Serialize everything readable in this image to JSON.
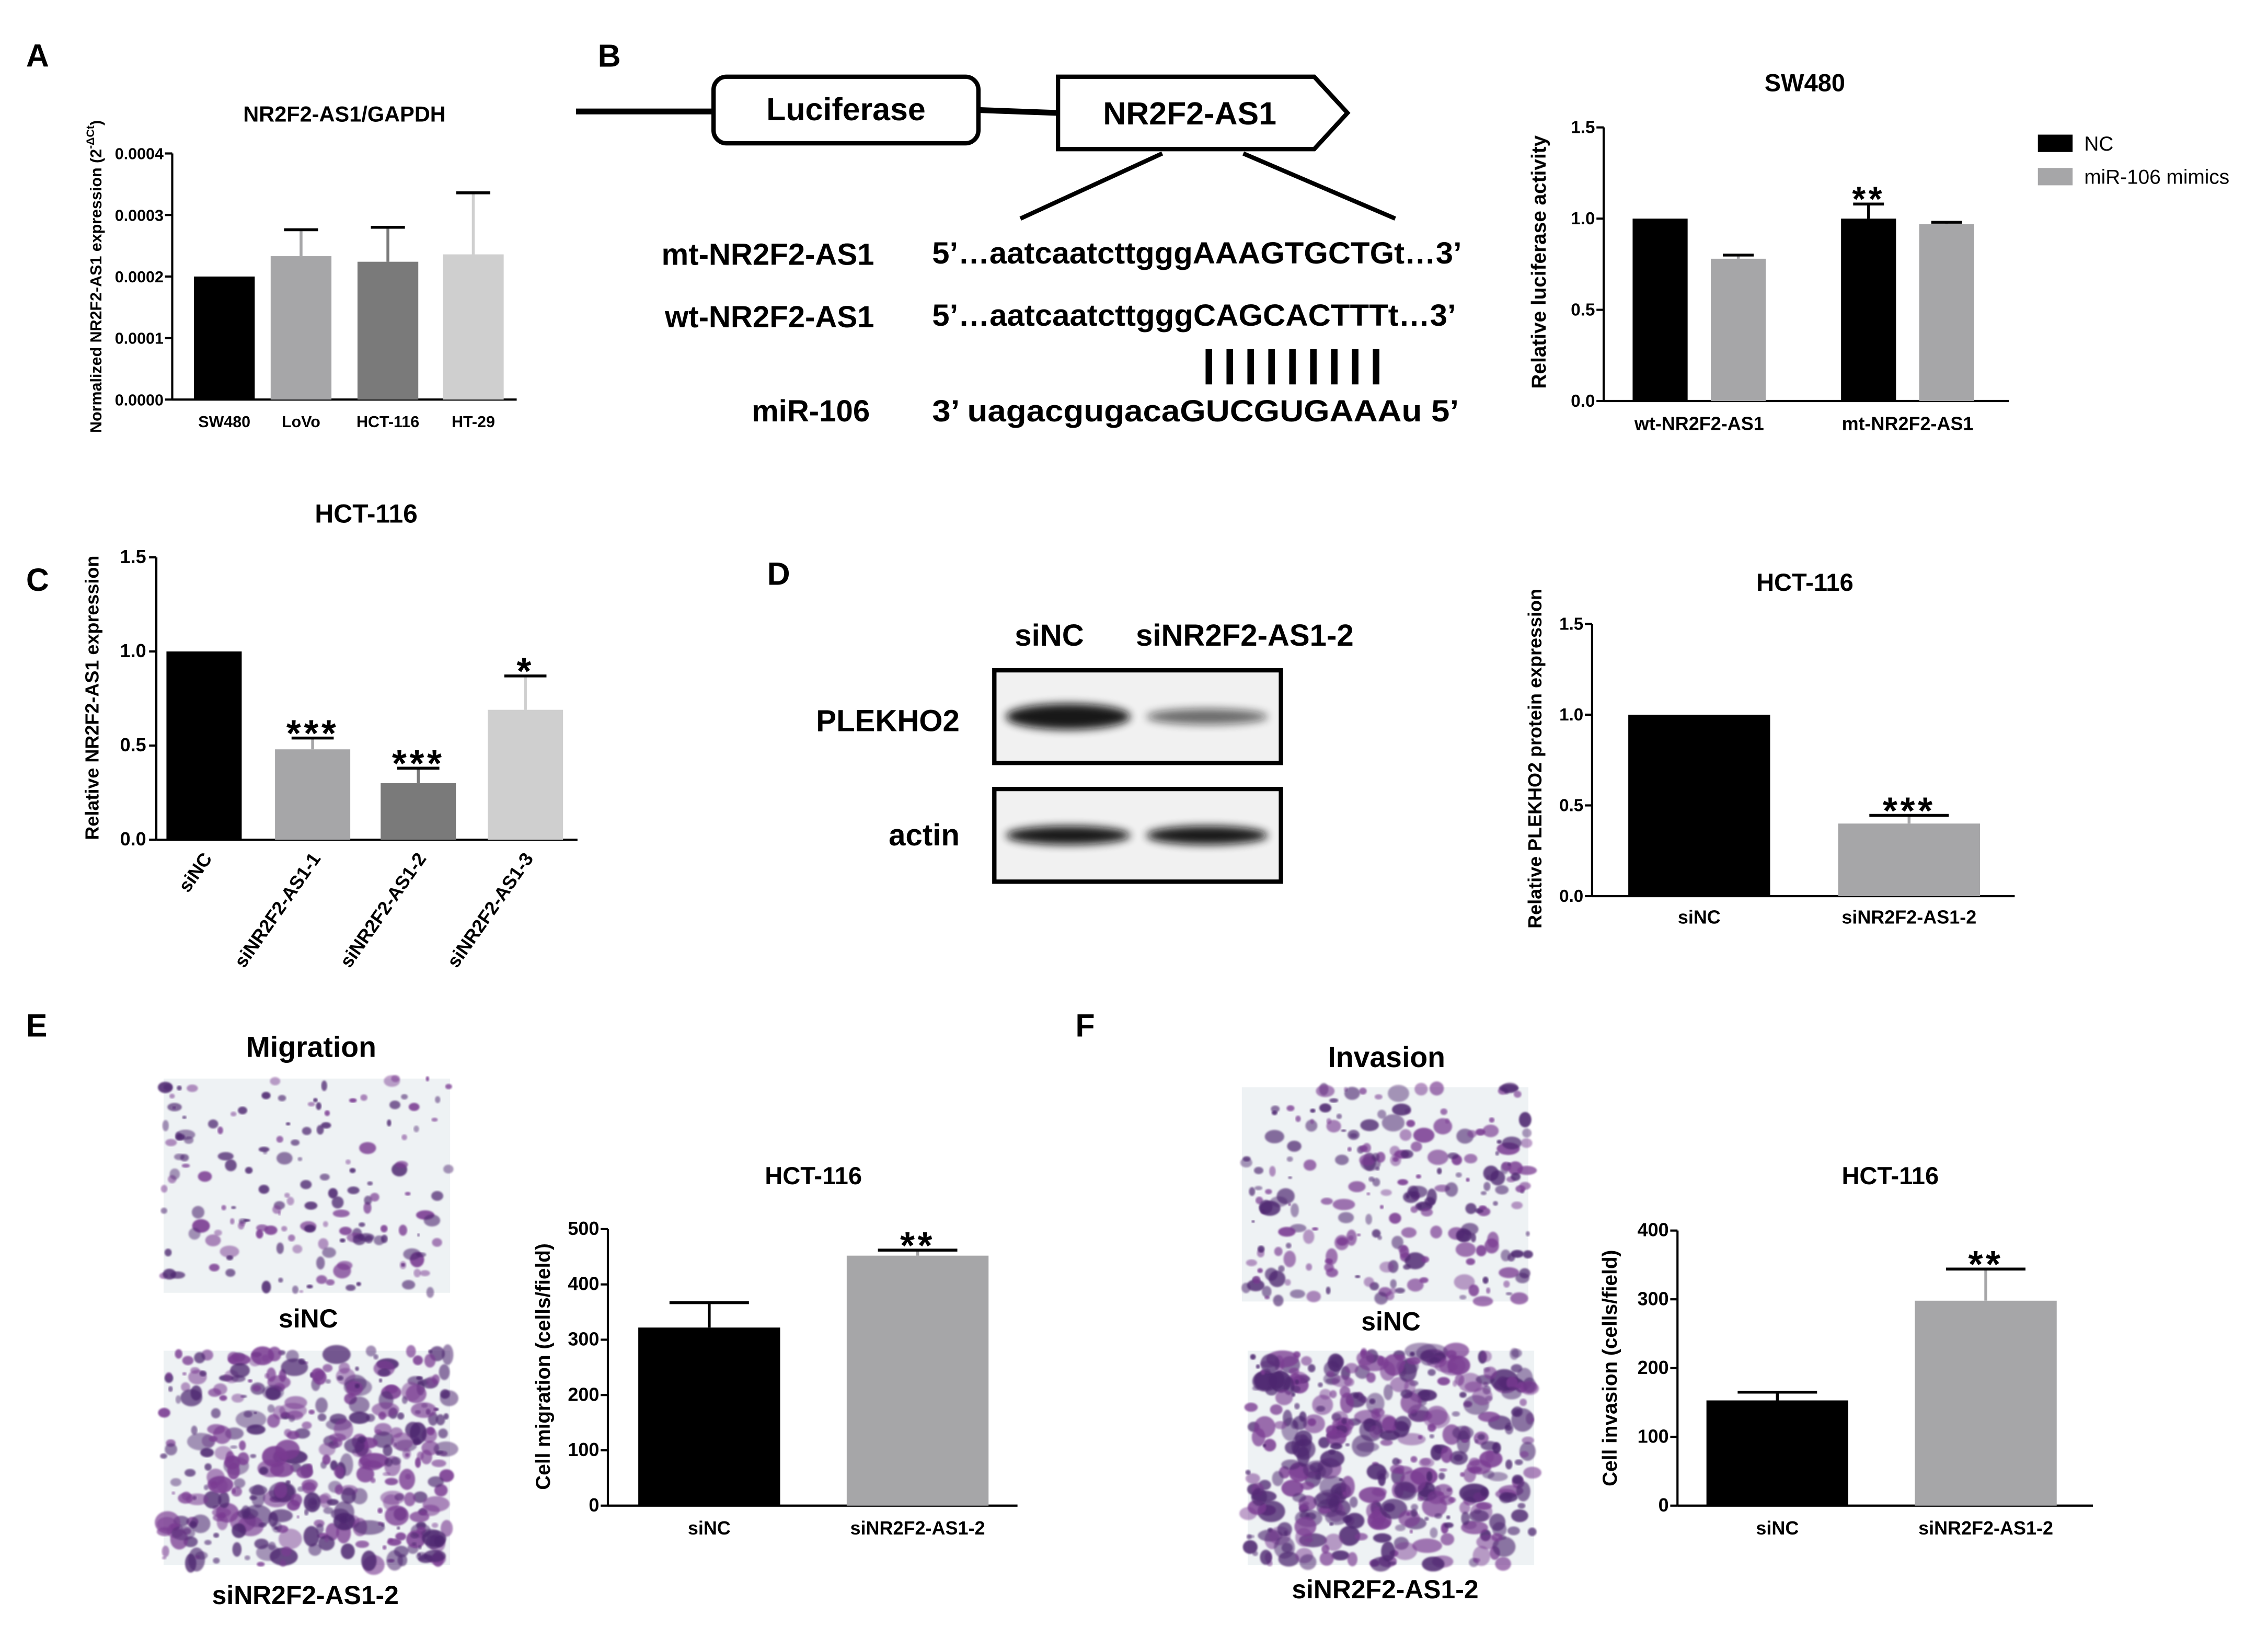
{
  "panel_labels": {
    "a": "A",
    "b": "B",
    "c": "C",
    "d": "D",
    "e": "E",
    "f": "F"
  },
  "colors": {
    "black": "#000000",
    "gray": "#a6a6a8",
    "dark_gray": "#7a7a7a",
    "light_gray": "#cfcfcf",
    "stain_purple": "#7a3a92",
    "stain_background": "#eef2f4"
  },
  "construct": {
    "luciferase_label": "Luciferase",
    "gene_label": "NR2F2-AS1"
  },
  "sequences": [
    {
      "name": "mt-NR2F2-AS1",
      "seq": "5’…aatcaatcttgggAAAGTGCTGt…3’"
    },
    {
      "name": "wt-NR2F2-AS1",
      "seq": "5’…aatcaatcttgggCAGCACTTTt…3’"
    },
    {
      "name": "miR-106",
      "seq": "3’  uagacgugacaGUCGUGAAAu  5’"
    }
  ],
  "pairing_marks": "|||||||||",
  "western": {
    "lane_labels": [
      "siNC",
      "siNR2F2-AS1-2"
    ],
    "rows": [
      {
        "label": "PLEKHO2",
        "relative_intensity": [
          1.0,
          0.4
        ]
      },
      {
        "label": "actin",
        "relative_intensity": [
          1.0,
          1.0
        ]
      }
    ]
  },
  "images": {
    "migration_title": "Migration",
    "invasion_title": "Invasion",
    "captions": [
      "siNC",
      "siNR2F2-AS1-2"
    ]
  },
  "chart_data": [
    {
      "id": "A",
      "type": "bar",
      "title": "NR2F2-AS1/GAPDH",
      "ylabel": "Normalized NR2F2-AS1 expression (2",
      "ylabel_sup": "-ΔCt",
      "ylabel_tail": ")",
      "categories": [
        "SW480",
        "LoVo",
        "HCT-116",
        "HT-29"
      ],
      "values": [
        0.0002,
        0.000233,
        0.000224,
        0.000236
      ],
      "errors": [
        0.0,
        4.3e-05,
        5.6e-05,
        0.0001
      ],
      "colors": [
        "#000000",
        "#a6a6a8",
        "#7a7a7a",
        "#cfcfcf"
      ],
      "ylim": [
        0,
        0.0004
      ],
      "ytick_labels": [
        "0.0000",
        "0.0001",
        "0.0002",
        "0.0003",
        "0.0004"
      ],
      "significance": [
        "",
        "",
        "",
        ""
      ]
    },
    {
      "id": "B",
      "type": "bar",
      "title": "SW480",
      "ylabel": "Relative luciferase activity",
      "categories": [
        "wt-NR2F2-AS1",
        "mt-NR2F2-AS1"
      ],
      "series": [
        {
          "name": "NC",
          "color": "#000000",
          "values": [
            1.0,
            1.0
          ],
          "errors": [
            0.0,
            0.08
          ]
        },
        {
          "name": "miR-106 mimics",
          "color": "#a6a6a8",
          "values": [
            0.78,
            0.97
          ],
          "errors": [
            0.02,
            0.01
          ]
        }
      ],
      "ylim": [
        0,
        1.5
      ],
      "ytick_labels": [
        "0.0",
        "0.5",
        "1.0",
        "1.5"
      ],
      "significance": [
        [
          "",
          "**"
        ],
        [
          "",
          ""
        ]
      ]
    },
    {
      "id": "C",
      "type": "bar",
      "title": "HCT-116",
      "ylabel": "Relative NR2F2-AS1 expression",
      "categories": [
        "siNC",
        "siNR2F2-AS1-1",
        "siNR2F2-AS1-2",
        "siNR2F2-AS1-3"
      ],
      "values": [
        1.0,
        0.48,
        0.3,
        0.69
      ],
      "errors": [
        0.0,
        0.06,
        0.08,
        0.18
      ],
      "colors": [
        "#000000",
        "#a6a6a8",
        "#7a7a7a",
        "#cfcfcf"
      ],
      "ylim": [
        0,
        1.5
      ],
      "ytick_labels": [
        "0.0",
        "0.5",
        "1.0",
        "1.5"
      ],
      "significance": [
        "",
        "***",
        "***",
        "*"
      ]
    },
    {
      "id": "D",
      "type": "bar",
      "title": "HCT-116",
      "ylabel": "Relative PLEKHO2 protein expression",
      "categories": [
        "siNC",
        "siNR2F2-AS1-2"
      ],
      "values": [
        1.0,
        0.4
      ],
      "errors": [
        0.0,
        0.045
      ],
      "colors": [
        "#000000",
        "#a6a6a8"
      ],
      "ylim": [
        0,
        1.5
      ],
      "ytick_labels": [
        "0.0",
        "0.5",
        "1.0",
        "1.5"
      ],
      "significance": [
        "",
        "***"
      ]
    },
    {
      "id": "E",
      "type": "bar",
      "title": "HCT-116",
      "ylabel": "Cell migration (cells/field)",
      "categories": [
        "siNC",
        "siNR2F2-AS1-2"
      ],
      "values": [
        322,
        452
      ],
      "errors": [
        45,
        10
      ],
      "colors": [
        "#000000",
        "#a6a6a8"
      ],
      "ylim": [
        0,
        500
      ],
      "ytick_labels": [
        "0",
        "100",
        "200",
        "300",
        "400",
        "500"
      ],
      "significance": [
        "",
        "**"
      ]
    },
    {
      "id": "F",
      "type": "bar",
      "title": "HCT-116",
      "ylabel": "Cell invasion (cells/field)",
      "categories": [
        "siNC",
        "siNR2F2-AS1-2"
      ],
      "values": [
        153,
        298
      ],
      "errors": [
        12,
        46
      ],
      "colors": [
        "#000000",
        "#a6a6a8"
      ],
      "ylim": [
        0,
        400
      ],
      "ytick_labels": [
        "0",
        "100",
        "200",
        "300",
        "400"
      ],
      "significance": [
        "",
        "**"
      ]
    }
  ]
}
